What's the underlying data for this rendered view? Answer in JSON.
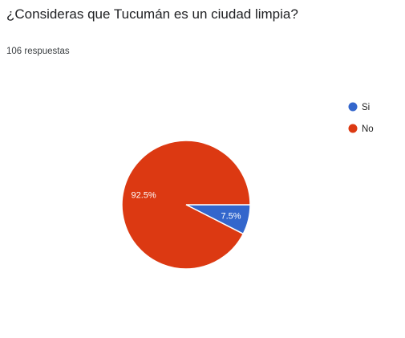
{
  "question": {
    "title": "¿Consideras que Tucumán es un ciudad limpia?",
    "response_count": "106 respuestas"
  },
  "chart_data": {
    "type": "pie",
    "categories": [
      "Si",
      "No"
    ],
    "values": [
      7.5,
      92.5
    ],
    "labels": [
      "7.5%",
      "92.5%"
    ],
    "colors": [
      "#3366cc",
      "#dc3912"
    ],
    "legend_position": "right",
    "start": "3 o'clock, clockwise"
  }
}
